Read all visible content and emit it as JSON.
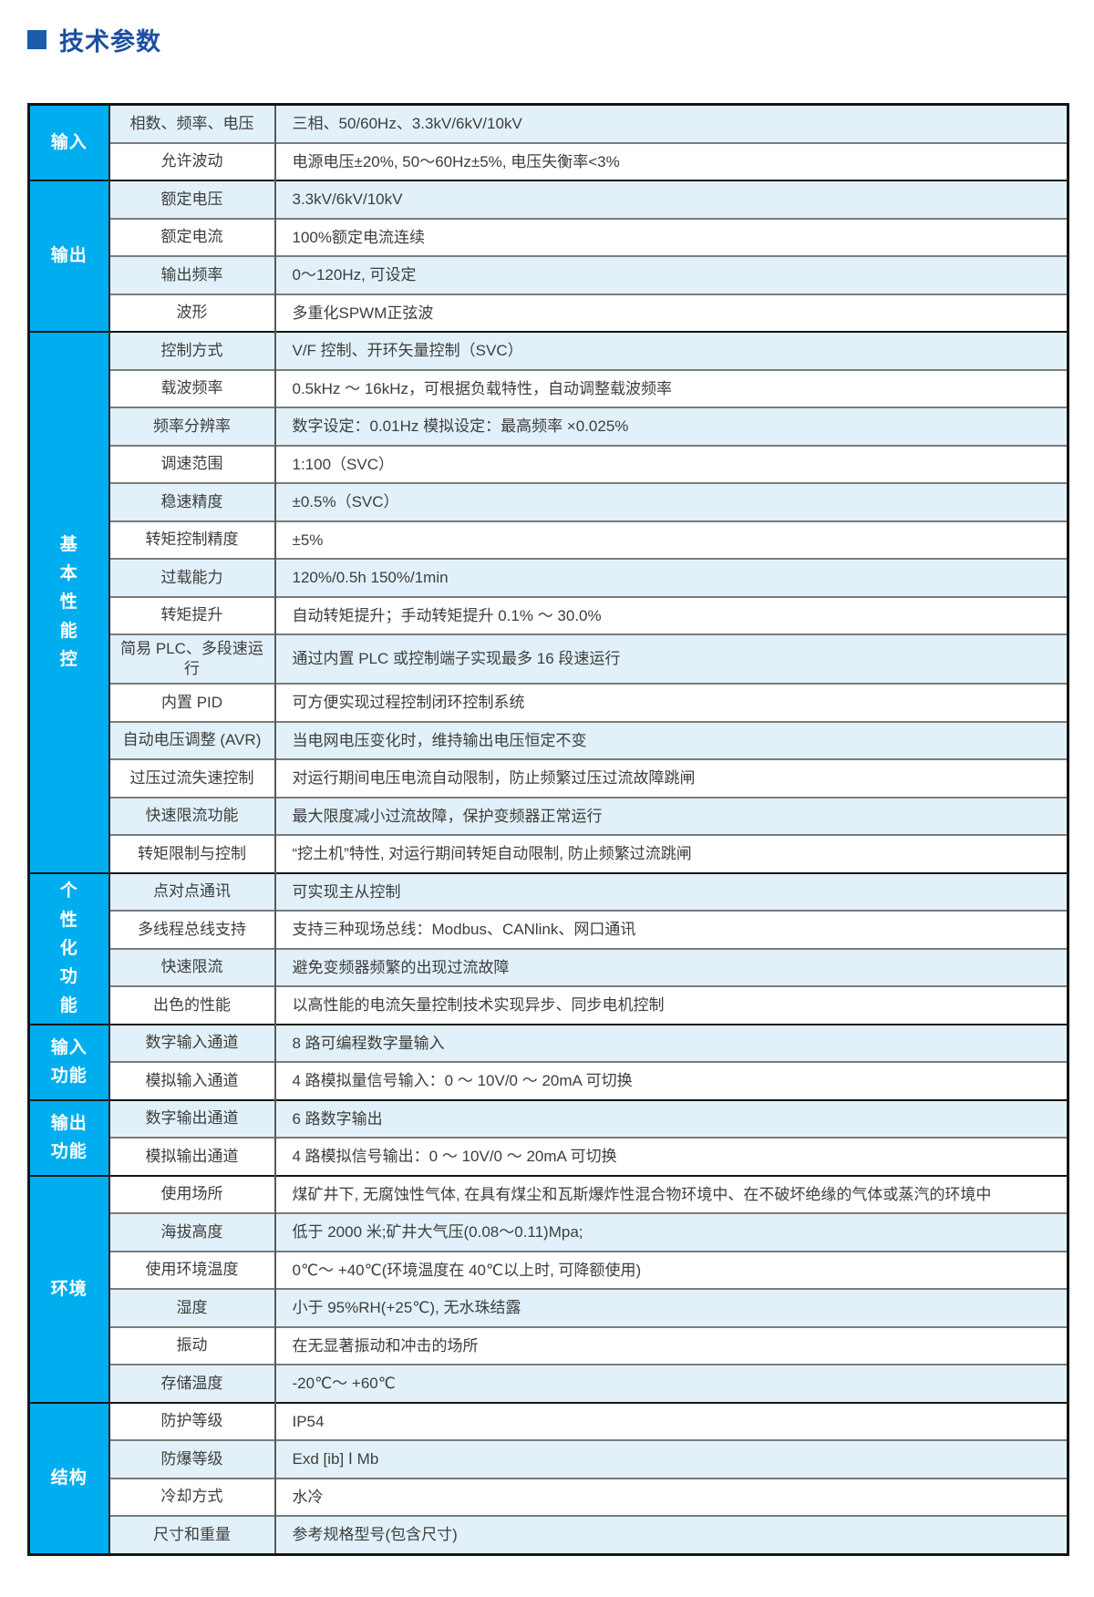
{
  "page": {
    "title": "技术参数"
  },
  "colors": {
    "title_navy": "#1C4FA1",
    "bullet_navy": "#1A5CA8",
    "category_blue": "#00AEEF",
    "row_shade_blue": "#E2F1F9",
    "text_gray": "#3d3d3d"
  },
  "table": {
    "sections": [
      {
        "category": "输入",
        "first_row_shaded": true,
        "rows": [
          {
            "label": "相数、频率、电压",
            "value": "三相、50/60Hz、3.3kV/6kV/10kV"
          },
          {
            "label": "允许波动",
            "value": "电源电压±20%, 50～60Hz±5%, 电压失衡率<3%"
          }
        ]
      },
      {
        "category": "输出",
        "first_row_shaded": true,
        "rows": [
          {
            "label": "额定电压",
            "value": "3.3kV/6kV/10kV"
          },
          {
            "label": "额定电流",
            "value": "100%额定电流连续"
          },
          {
            "label": "输出频率",
            "value": "0～120Hz, 可设定"
          },
          {
            "label": "波形",
            "value": "多重化SPWM正弦波"
          }
        ]
      },
      {
        "category": "基\n本\n性\n能\n控",
        "first_row_shaded": true,
        "rows": [
          {
            "label": "控制方式",
            "value": "V/F 控制、开环矢量控制（SVC）"
          },
          {
            "label": "载波频率",
            "value": "0.5kHz ～ 16kHz，可根据负载特性，自动调整载波频率"
          },
          {
            "label": "频率分辨率",
            "value": "数字设定：0.01Hz 模拟设定：最高频率 ×0.025%"
          },
          {
            "label": "调速范围",
            "value": "1:100（SVC）"
          },
          {
            "label": "稳速精度",
            "value": "±0.5%（SVC）"
          },
          {
            "label": "转矩控制精度",
            "value": "±5%"
          },
          {
            "label": "过载能力",
            "value": "120%/0.5h 150%/1min"
          },
          {
            "label": "转矩提升",
            "value": "自动转矩提升；手动转矩提升 0.1% ～ 30.0%"
          },
          {
            "label": "简易 PLC、多段速运行",
            "value": "通过内置 PLC 或控制端子实现最多 16 段速运行"
          },
          {
            "label": "内置 PID",
            "value": "可方便实现过程控制闭环控制系统"
          },
          {
            "label": "自动电压调整 (AVR)",
            "value": "当电网电压变化时，维持输出电压恒定不变"
          },
          {
            "label": "过压过流失速控制",
            "value": "对运行期间电压电流自动限制，防止频繁过压过流故障跳闸"
          },
          {
            "label": "快速限流功能",
            "value": "最大限度减小过流故障，保护变频器正常运行"
          },
          {
            "label": "转矩限制与控制",
            "value": "“挖土机”特性, 对运行期间转矩自动限制, 防止频繁过流跳闸"
          }
        ]
      },
      {
        "category": "个\n性\n化\n功\n能",
        "first_row_shaded": true,
        "rows": [
          {
            "label": "点对点通讯",
            "value": "可实现主从控制"
          },
          {
            "label": "多线程总线支持",
            "value": "支持三种现场总线：Modbus、CANlink、网口通讯"
          },
          {
            "label": "快速限流",
            "value": "避免变频器频繁的出现过流故障"
          },
          {
            "label": "出色的性能",
            "value": "以高性能的电流矢量控制技术实现异步、同步电机控制"
          }
        ]
      },
      {
        "category": "输入\n功能",
        "first_row_shaded": true,
        "rows": [
          {
            "label": "数字输入通道",
            "value": "8 路可编程数字量输入"
          },
          {
            "label": "模拟输入通道",
            "value": "4 路模拟量信号输入：0 ～ 10V/0 ～ 20mA 可切换"
          }
        ]
      },
      {
        "category": "输出\n功能",
        "first_row_shaded": true,
        "rows": [
          {
            "label": "数字输出通道",
            "value": "6 路数字输出"
          },
          {
            "label": "模拟输出通道",
            "value": "4 路模拟信号输出：0 ～ 10V/0 ～ 20mA 可切换"
          }
        ]
      },
      {
        "category": "环境",
        "first_row_shaded": false,
        "rows": [
          {
            "label": "使用场所",
            "value": "煤矿井下, 无腐蚀性气体, 在具有煤尘和瓦斯爆炸性混合物环境中、在不破坏绝缘的气体或蒸汽的环境中"
          },
          {
            "label": "海拔高度",
            "value": "低于 2000 米;矿井大气压(0.08～0.11)Mpa;"
          },
          {
            "label": "使用环境温度",
            "value": "0℃～ +40℃(环境温度在 40℃以上时, 可降额使用)"
          },
          {
            "label": "湿度",
            "value": "小于 95%RH(+25℃), 无水珠结露"
          },
          {
            "label": "振动",
            "value": "在无显著振动和冲击的场所"
          },
          {
            "label": "存储温度",
            "value": "-20℃～ +60℃"
          }
        ]
      },
      {
        "category": "结构",
        "first_row_shaded": false,
        "rows": [
          {
            "label": "防护等级",
            "value": "IP54"
          },
          {
            "label": "防爆等级",
            "value": "Exd [ib] Ⅰ Mb"
          },
          {
            "label": "冷却方式",
            "value": "水冷"
          },
          {
            "label": "尺寸和重量",
            "value": "参考规格型号(包含尺寸)"
          }
        ]
      }
    ]
  }
}
